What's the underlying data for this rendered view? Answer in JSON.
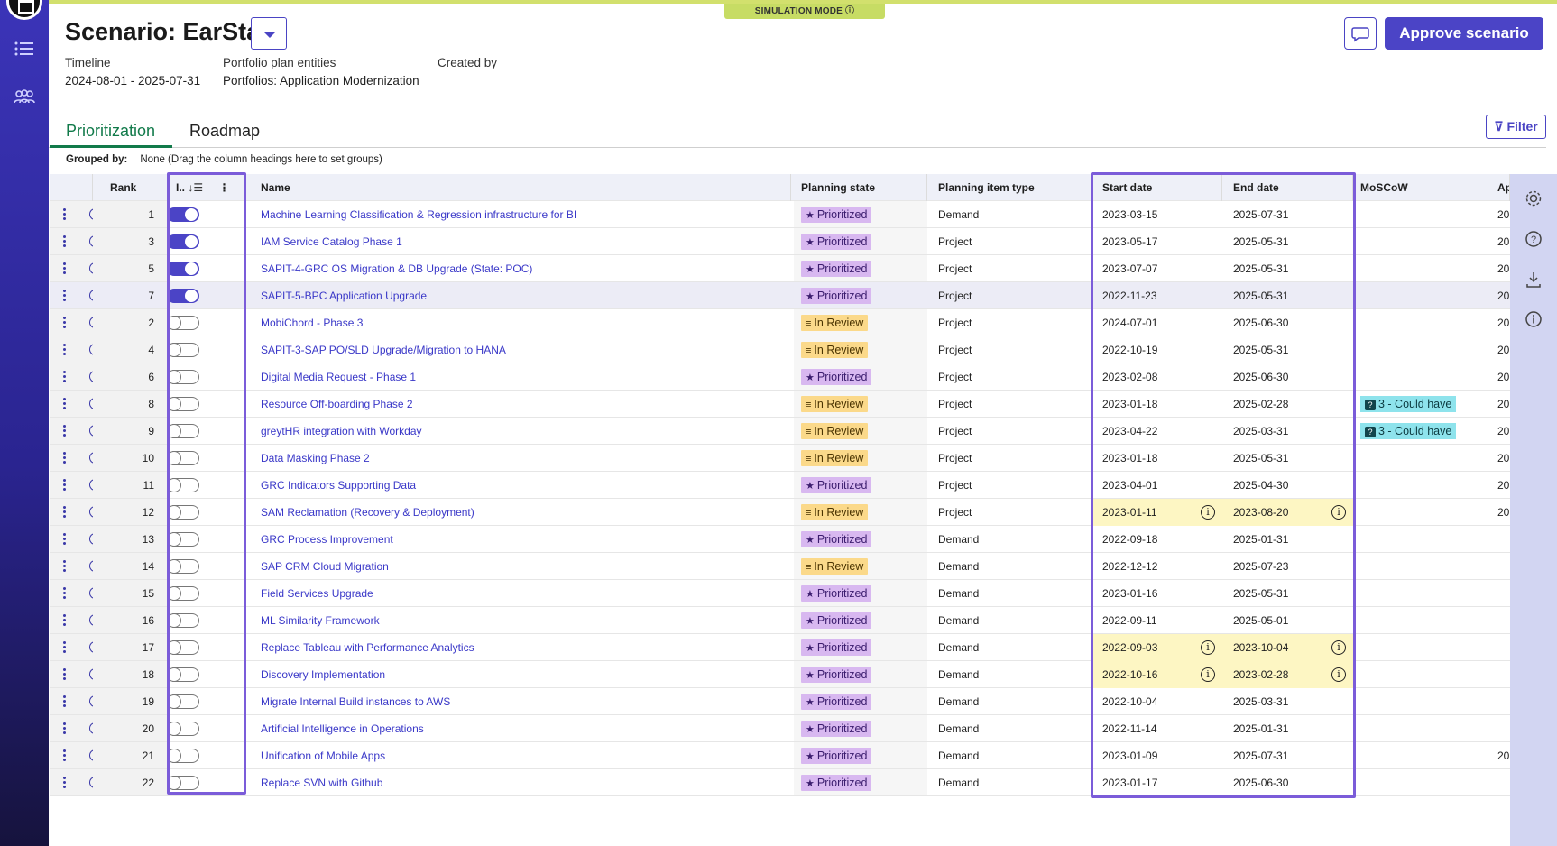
{
  "header": {
    "title": "Scenario: EarSta",
    "simulation_mode": "SIMULATION MODE",
    "timeline_label": "Timeline",
    "timeline_value": "2024-08-01 - 2025-07-31",
    "portfolio_label": "Portfolio plan entities",
    "portfolio_value": "Portfolios: Application Modernization",
    "created_by_label": "Created by",
    "approve_label": "Approve scenario"
  },
  "tabs": [
    {
      "label": "Prioritization",
      "active": true
    },
    {
      "label": "Roadmap",
      "active": false
    }
  ],
  "filter_label": "Filter",
  "grouped": {
    "label": "Grouped by:",
    "value": "None (Drag the column headings here to set groups)"
  },
  "columns": {
    "rank": "Rank",
    "toggle": "I..",
    "name": "Name",
    "state": "Planning state",
    "type": "Planning item type",
    "start": "Start date",
    "end": "End date",
    "moscow": "MoSCoW",
    "ap": "Ap"
  },
  "rows": [
    {
      "rank": "1",
      "on": true,
      "name": "Machine Learning Classification & Regression infrastructure for BI",
      "state": "Prioritized",
      "type": "Demand",
      "start": "2023-03-15",
      "end": "2025-07-31",
      "moscow": "",
      "warn": false,
      "ap": "20"
    },
    {
      "rank": "3",
      "on": true,
      "name": "IAM Service Catalog Phase 1",
      "state": "Prioritized",
      "type": "Project",
      "start": "2023-05-17",
      "end": "2025-05-31",
      "moscow": "",
      "warn": false,
      "ap": "20"
    },
    {
      "rank": "5",
      "on": true,
      "name": "SAPIT-4-GRC OS Migration & DB Upgrade (State: POC)",
      "state": "Prioritized",
      "type": "Project",
      "start": "2023-07-07",
      "end": "2025-05-31",
      "moscow": "",
      "warn": false,
      "ap": "20"
    },
    {
      "rank": "7",
      "on": true,
      "name": "SAPIT-5-BPC Application Upgrade",
      "state": "Prioritized",
      "type": "Project",
      "start": "2022-11-23",
      "end": "2025-05-31",
      "moscow": "",
      "warn": false,
      "ap": "20",
      "sel": true
    },
    {
      "rank": "2",
      "on": false,
      "name": "MobiChord - Phase 3",
      "state": "In Review",
      "type": "Project",
      "start": "2024-07-01",
      "end": "2025-06-30",
      "moscow": "",
      "warn": false,
      "ap": "20"
    },
    {
      "rank": "4",
      "on": false,
      "name": "SAPIT-3-SAP PO/SLD Upgrade/Migration to HANA",
      "state": "In Review",
      "type": "Project",
      "start": "2022-10-19",
      "end": "2025-05-31",
      "moscow": "",
      "warn": false,
      "ap": "20"
    },
    {
      "rank": "6",
      "on": false,
      "name": "Digital Media Request - Phase 1",
      "state": "Prioritized",
      "type": "Project",
      "start": "2023-02-08",
      "end": "2025-06-30",
      "moscow": "",
      "warn": false,
      "ap": "20"
    },
    {
      "rank": "8",
      "on": false,
      "name": "Resource Off-boarding Phase 2",
      "state": "In Review",
      "type": "Project",
      "start": "2023-01-18",
      "end": "2025-02-28",
      "moscow": "3 - Could have",
      "warn": false,
      "ap": "20"
    },
    {
      "rank": "9",
      "on": false,
      "name": "greytHR integration with Workday",
      "state": "In Review",
      "type": "Project",
      "start": "2023-04-22",
      "end": "2025-03-31",
      "moscow": "3 - Could have",
      "warn": false,
      "ap": "20"
    },
    {
      "rank": "10",
      "on": false,
      "name": "Data Masking Phase 2",
      "state": "In Review",
      "type": "Project",
      "start": "2023-01-18",
      "end": "2025-05-31",
      "moscow": "",
      "warn": false,
      "ap": "20"
    },
    {
      "rank": "11",
      "on": false,
      "name": "GRC Indicators Supporting Data",
      "state": "Prioritized",
      "type": "Project",
      "start": "2023-04-01",
      "end": "2025-04-30",
      "moscow": "",
      "warn": false,
      "ap": "20"
    },
    {
      "rank": "12",
      "on": false,
      "name": "SAM Reclamation (Recovery & Deployment)",
      "state": "In Review",
      "type": "Project",
      "start": "2023-01-11",
      "end": "2023-08-20",
      "moscow": "",
      "warn": true,
      "ap": "20"
    },
    {
      "rank": "13",
      "on": false,
      "name": "GRC Process Improvement",
      "state": "Prioritized",
      "type": "Demand",
      "start": "2022-09-18",
      "end": "2025-01-31",
      "moscow": "",
      "warn": false,
      "ap": ""
    },
    {
      "rank": "14",
      "on": false,
      "name": "SAP CRM Cloud Migration",
      "state": "In Review",
      "type": "Demand",
      "start": "2022-12-12",
      "end": "2025-07-23",
      "moscow": "",
      "warn": false,
      "ap": ""
    },
    {
      "rank": "15",
      "on": false,
      "name": "Field Services Upgrade",
      "state": "Prioritized",
      "type": "Demand",
      "start": "2023-01-16",
      "end": "2025-05-31",
      "moscow": "",
      "warn": false,
      "ap": ""
    },
    {
      "rank": "16",
      "on": false,
      "name": "ML Similarity Framework",
      "state": "Prioritized",
      "type": "Demand",
      "start": "2022-09-11",
      "end": "2025-05-01",
      "moscow": "",
      "warn": false,
      "ap": ""
    },
    {
      "rank": "17",
      "on": false,
      "name": "Replace Tableau with Performance Analytics",
      "state": "Prioritized",
      "type": "Demand",
      "start": "2022-09-03",
      "end": "2023-10-04",
      "moscow": "",
      "warn": true,
      "ap": ""
    },
    {
      "rank": "18",
      "on": false,
      "name": "Discovery Implementation",
      "state": "Prioritized",
      "type": "Demand",
      "start": "2022-10-16",
      "end": "2023-02-28",
      "moscow": "",
      "warn": true,
      "ap": ""
    },
    {
      "rank": "19",
      "on": false,
      "name": "Migrate Internal Build instances to AWS",
      "state": "Prioritized",
      "type": "Demand",
      "start": "2022-10-04",
      "end": "2025-03-31",
      "moscow": "",
      "warn": false,
      "ap": ""
    },
    {
      "rank": "20",
      "on": false,
      "name": "Artificial Intelligence in Operations",
      "state": "Prioritized",
      "type": "Demand",
      "start": "2022-11-14",
      "end": "2025-01-31",
      "moscow": "",
      "warn": false,
      "ap": ""
    },
    {
      "rank": "21",
      "on": false,
      "name": "Unification of Mobile Apps",
      "state": "Prioritized",
      "type": "Demand",
      "start": "2023-01-09",
      "end": "2025-07-31",
      "moscow": "",
      "warn": false,
      "ap": "20"
    },
    {
      "rank": "22",
      "on": false,
      "name": "Replace SVN with Github",
      "state": "Prioritized",
      "type": "Demand",
      "start": "2023-01-17",
      "end": "2025-06-30",
      "moscow": "",
      "warn": false,
      "ap": ""
    }
  ],
  "colors": {
    "accent": "#4b44c6",
    "highlight_frame": "#7b5cd9",
    "prioritized": "#d8b8f0",
    "in_review": "#fbd98a",
    "moscow": "#8ee3ec",
    "warn": "#fdf6c3"
  }
}
